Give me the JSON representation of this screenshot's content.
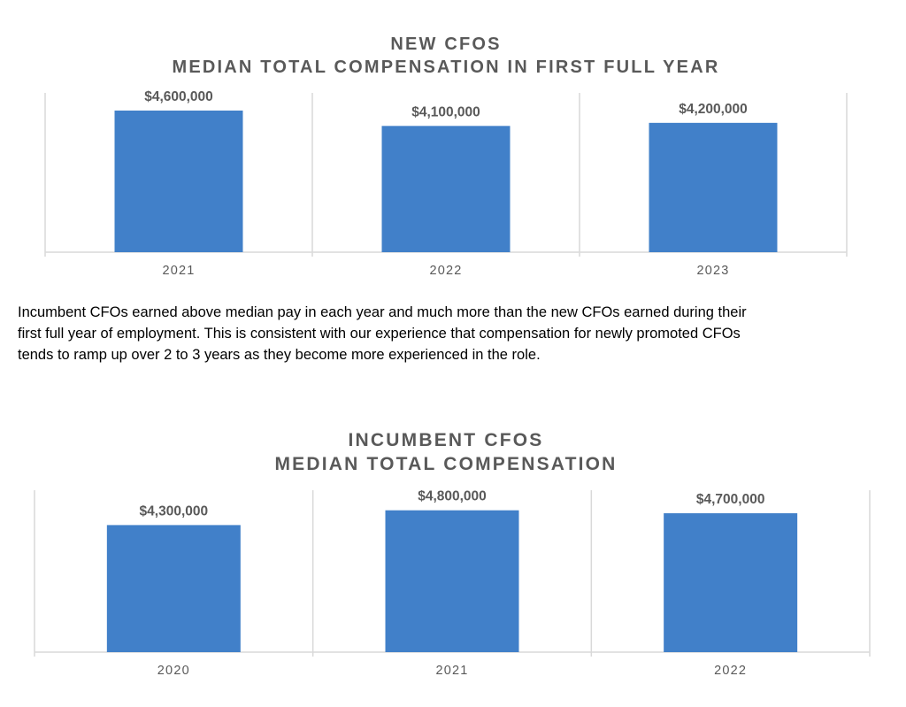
{
  "charts": [
    {
      "title_line1": "NEW CFOS",
      "title_line2": "MEDIAN TOTAL COMPENSATION IN FIRST FULL YEAR"
    },
    {
      "title_line1": "INCUMBENT CFOS",
      "title_line2": "MEDIAN TOTAL COMPENSATION"
    }
  ],
  "paragraph": {
    "line1": "Incumbent CFOs earned above median pay in each year and much more than the new CFOs earned during their",
    "line2": "first full year of employment. This is consistent with our experience that compensation for newly promoted CFOs",
    "line3": "tends to ramp up over 2 to 3 years as they become more experienced in the role."
  },
  "colors": {
    "bar": "#4180C9",
    "grid": "#D9D9D9",
    "label_text": "#595959"
  },
  "chart_data": [
    {
      "type": "bar",
      "title": "NEW CFOS MEDIAN TOTAL COMPENSATION IN FIRST FULL YEAR",
      "categories": [
        "2021",
        "2022",
        "2023"
      ],
      "values": [
        4600000,
        4100000,
        4200000
      ],
      "data_labels": [
        "$4,600,000",
        "$4,100,000",
        "$4,200,000"
      ],
      "xlabel": "",
      "ylabel": "",
      "ylim": [
        0,
        5000000
      ],
      "grid": "vertical category separators",
      "legend": "none"
    },
    {
      "type": "bar",
      "title": "INCUMBENT CFOS MEDIAN TOTAL COMPENSATION",
      "categories": [
        "2020",
        "2021",
        "2022"
      ],
      "values": [
        4300000,
        4800000,
        4700000
      ],
      "data_labels": [
        "$4,300,000",
        "$4,800,000",
        "$4,700,000"
      ],
      "xlabel": "",
      "ylabel": "",
      "ylim": [
        0,
        5300000
      ],
      "grid": "vertical category separators",
      "legend": "none"
    }
  ]
}
